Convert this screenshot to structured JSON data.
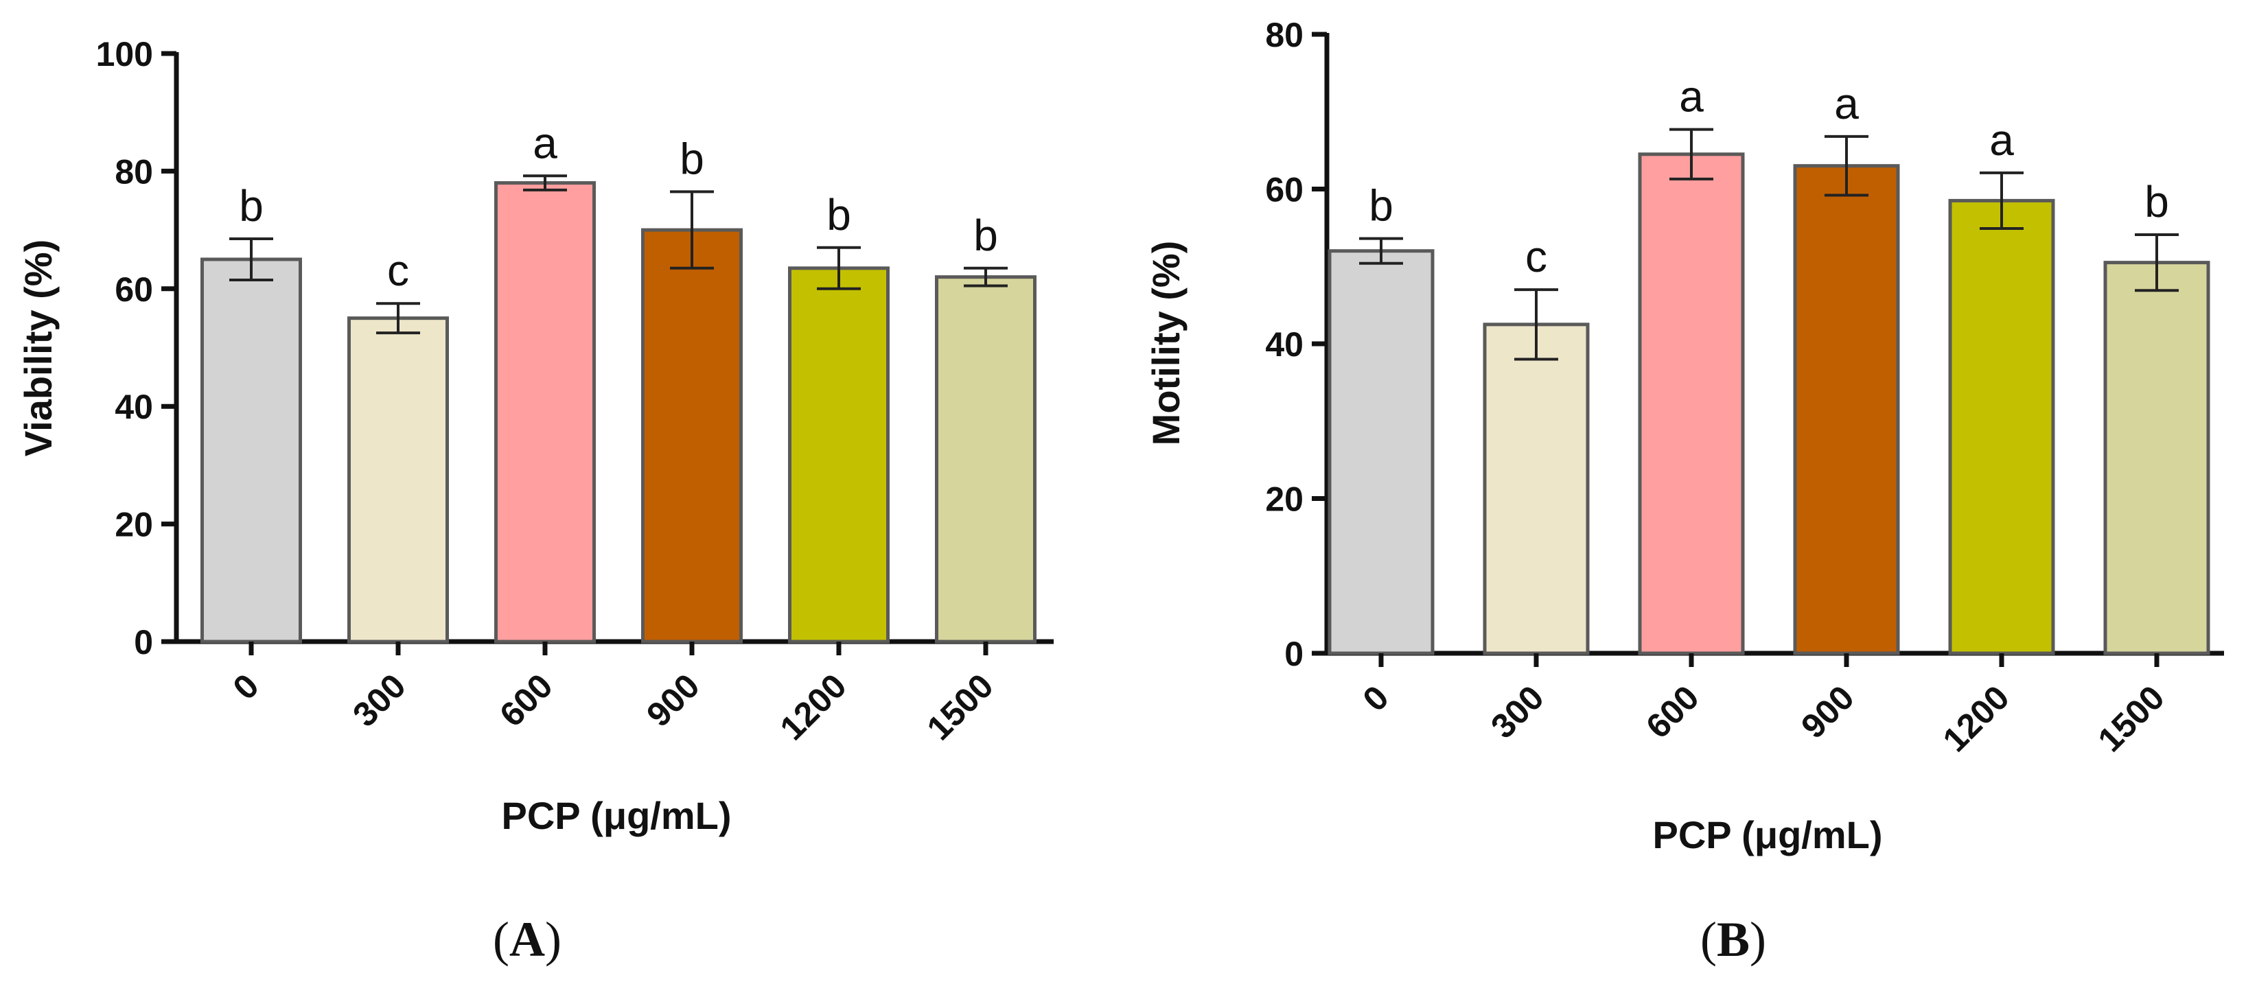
{
  "chart_data": [
    {
      "type": "bar",
      "panel_label": "(A)",
      "xlabel": "PCP (μg/mL)",
      "ylabel": "Viability (%)",
      "ylim": [
        0,
        100
      ],
      "yticks": [
        "0",
        "20",
        "40",
        "60",
        "80",
        "100"
      ],
      "categories": [
        "0",
        "300",
        "600",
        "900",
        "1200",
        "1500"
      ],
      "values": [
        65,
        55,
        78,
        70,
        63.5,
        62
      ],
      "errors": [
        3.5,
        2.5,
        1.2,
        6.5,
        3.5,
        1.5
      ],
      "letters": [
        "b",
        "c",
        "a",
        "b",
        "b",
        "b"
      ],
      "colors": [
        "#d3d3d3",
        "#ede6c9",
        "#ff9f9f",
        "#c05f00",
        "#c3c000",
        "#d6d59c"
      ]
    },
    {
      "type": "bar",
      "panel_label": "(B)",
      "xlabel": "PCP (μg/mL)",
      "ylabel": "Motility (%)",
      "ylim": [
        0,
        80
      ],
      "yticks": [
        "0",
        "20",
        "40",
        "60",
        "80"
      ],
      "categories": [
        "0",
        "300",
        "600",
        "900",
        "1200",
        "1500"
      ],
      "values": [
        52,
        42.5,
        64.5,
        63,
        58.5,
        50.5
      ],
      "errors": [
        1.6,
        4.5,
        3.2,
        3.8,
        3.6,
        3.6
      ],
      "letters": [
        "b",
        "c",
        "a",
        "a",
        "a",
        "b"
      ],
      "colors": [
        "#d3d3d3",
        "#ede6c9",
        "#ff9f9f",
        "#c05f00",
        "#c3c000",
        "#d6d59c"
      ]
    }
  ]
}
